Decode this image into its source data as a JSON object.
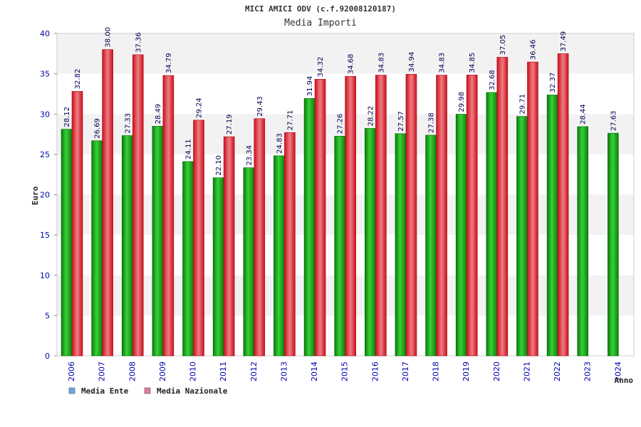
{
  "chart_data": {
    "type": "bar",
    "title": "MICI AMICI ODV (c.f.92008120187)",
    "subtitle": "Media Importi",
    "xlabel": "Anno",
    "ylabel": "Euro",
    "ylim": [
      0,
      40
    ],
    "yticks": [
      0,
      5,
      10,
      15,
      20,
      25,
      30,
      35,
      40
    ],
    "grid": "horizontal bands",
    "legend_position": "bottom-left",
    "categories": [
      "2006",
      "2007",
      "2008",
      "2009",
      "2010",
      "2011",
      "2012",
      "2013",
      "2014",
      "2015",
      "2016",
      "2017",
      "2018",
      "2019",
      "2020",
      "2021",
      "2022",
      "2023",
      "2024"
    ],
    "series": [
      {
        "name": "Media Ente",
        "legend_color": "#6aa6e8",
        "bar_color": "#1aa31a",
        "values": [
          28.12,
          26.69,
          27.33,
          28.49,
          24.11,
          22.1,
          23.34,
          24.83,
          31.94,
          27.26,
          28.22,
          27.57,
          27.38,
          29.98,
          32.68,
          29.71,
          32.37,
          28.44,
          27.63
        ],
        "labels": [
          "28.12",
          "26.69",
          "27.33",
          "28.49",
          "24.11",
          "22.10",
          "23.34",
          "24.83",
          "31.94",
          "27.26",
          "28.22",
          "27.57",
          "27.38",
          "29.98",
          "32.68",
          "29.71",
          "32.37",
          "28.44",
          "27.63"
        ]
      },
      {
        "name": "Media Nazionale",
        "legend_color": "#e07aa8",
        "bar_color": "#e0242e",
        "values": [
          32.82,
          38.0,
          37.36,
          34.79,
          29.24,
          27.19,
          29.43,
          27.71,
          34.32,
          34.68,
          34.83,
          34.94,
          34.83,
          34.85,
          37.05,
          36.46,
          37.49,
          null,
          null
        ],
        "labels": [
          "32.82",
          "38.00",
          "37.36",
          "34.79",
          "29.24",
          "27.19",
          "29.43",
          "27.71",
          "34.32",
          "34.68",
          "34.83",
          "34.94",
          "34.83",
          "34.85",
          "37.05",
          "36.46",
          "37.49",
          "",
          ""
        ]
      }
    ]
  }
}
